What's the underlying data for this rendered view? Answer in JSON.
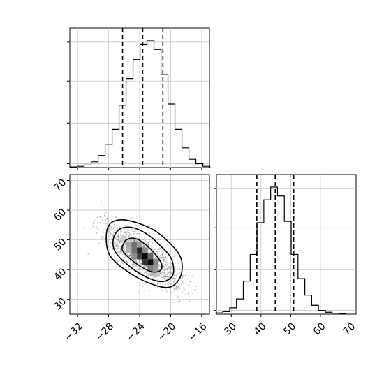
{
  "chart_data": [
    {
      "panel": "marginal-x",
      "type": "histogram",
      "xlim": [
        -33,
        -15
      ],
      "bins": [
        [
          -32.5,
          0.005
        ],
        [
          -31.6,
          0.01
        ],
        [
          -30.7,
          0.02
        ],
        [
          -29.8,
          0.045
        ],
        [
          -28.9,
          0.095
        ],
        [
          -28.0,
          0.18
        ],
        [
          -27.1,
          0.3
        ],
        [
          -26.2,
          0.49
        ],
        [
          -25.3,
          0.7
        ],
        [
          -24.4,
          0.85
        ],
        [
          -23.5,
          0.97
        ],
        [
          -22.6,
          1.0
        ],
        [
          -21.7,
          0.93
        ],
        [
          -20.8,
          0.73
        ],
        [
          -19.9,
          0.5
        ],
        [
          -19.0,
          0.3
        ],
        [
          -18.1,
          0.155
        ],
        [
          -17.2,
          0.065
        ],
        [
          -16.3,
          0.03
        ],
        [
          -15.4,
          0.01
        ]
      ],
      "bin_width": 0.9,
      "quantiles": [
        -26.2,
        -23.6,
        -21.0
      ],
      "yticks": [
        0.03,
        0.35,
        0.68,
        0.99
      ]
    },
    {
      "panel": "joint-2d",
      "type": "heatmap",
      "xlim": [
        -33,
        -15
      ],
      "ylim": [
        25,
        72
      ],
      "xticks": [
        "−32",
        "−28",
        "−24",
        "−20",
        "−16"
      ],
      "xtick_values": [
        -32,
        -28,
        -24,
        -20,
        -16
      ],
      "yticks": [
        "30",
        "40",
        "50",
        "60",
        "70"
      ],
      "ytick_values": [
        30,
        40,
        50,
        60,
        70
      ],
      "center": [
        -23.6,
        44.5
      ],
      "cells": [
        [
          -24.7,
          46.5,
          0.55
        ],
        [
          -24.0,
          46.5,
          0.85
        ],
        [
          -23.3,
          46.5,
          0.45
        ],
        [
          -25.4,
          48.5,
          0.35
        ],
        [
          -24.7,
          48.5,
          0.55
        ],
        [
          -24.0,
          48.5,
          0.4
        ],
        [
          -24.0,
          44.5,
          0.75
        ],
        [
          -23.3,
          44.5,
          1.0
        ],
        [
          -22.6,
          44.5,
          0.6
        ],
        [
          -23.3,
          42.5,
          0.8
        ],
        [
          -22.6,
          42.5,
          0.95
        ],
        [
          -21.9,
          42.5,
          0.45
        ],
        [
          -22.6,
          40.5,
          0.5
        ],
        [
          -21.9,
          40.5,
          0.4
        ],
        [
          -25.4,
          46.5,
          0.3
        ],
        [
          -24.7,
          44.5,
          0.45
        ],
        [
          -21.9,
          38.5,
          0.25
        ],
        [
          -26.1,
          50.5,
          0.2
        ]
      ],
      "contours": [
        {
          "level": "inner",
          "points": [
            [
              -26.1,
              48.6
            ],
            [
              -25.6,
              50.2
            ],
            [
              -24.6,
              50.5
            ],
            [
              -23.4,
              48.8
            ],
            [
              -22.1,
              45.5
            ],
            [
              -21.2,
              42.1
            ],
            [
              -21.3,
              39.8
            ],
            [
              -22.3,
              39.2
            ],
            [
              -23.6,
              40.6
            ],
            [
              -25.2,
              43.6
            ],
            [
              -26.2,
              46.4
            ]
          ]
        },
        {
          "level": "middle",
          "points": [
            [
              -27.4,
              50.2
            ],
            [
              -26.6,
              53.6
            ],
            [
              -25.0,
              54.2
            ],
            [
              -23.1,
              52.0
            ],
            [
              -21.3,
              48.0
            ],
            [
              -19.9,
              43.6
            ],
            [
              -19.7,
              38.3
            ],
            [
              -21.0,
              36.0
            ],
            [
              -22.9,
              37.2
            ],
            [
              -25.1,
              40.7
            ],
            [
              -27.1,
              45.8
            ]
          ]
        },
        {
          "level": "outer",
          "points": [
            [
              -28.3,
              51.6
            ],
            [
              -27.6,
              55.9
            ],
            [
              -25.6,
              56.6
            ],
            [
              -22.5,
              53.8
            ],
            [
              -20.3,
              49.4
            ],
            [
              -18.7,
              44.0
            ],
            [
              -18.7,
              37.9
            ],
            [
              -20.1,
              34.1
            ],
            [
              -22.5,
              35.2
            ],
            [
              -25.3,
              38.9
            ],
            [
              -27.8,
              44.6
            ]
          ]
        }
      ]
    },
    {
      "panel": "marginal-y",
      "type": "histogram",
      "xlim": [
        25,
        72
      ],
      "xticks": [
        "30",
        "40",
        "50",
        "60",
        "70"
      ],
      "xtick_values": [
        30,
        40,
        50,
        60,
        70
      ],
      "bins": [
        [
          26.0,
          0.01
        ],
        [
          28.3,
          0.02
        ],
        [
          30.6,
          0.05
        ],
        [
          32.9,
          0.12
        ],
        [
          35.2,
          0.26
        ],
        [
          37.5,
          0.47
        ],
        [
          39.8,
          0.72
        ],
        [
          42.1,
          0.9
        ],
        [
          44.4,
          1.0
        ],
        [
          46.7,
          0.93
        ],
        [
          49.0,
          0.73
        ],
        [
          51.3,
          0.47
        ],
        [
          53.6,
          0.28
        ],
        [
          55.9,
          0.15
        ],
        [
          58.2,
          0.07
        ],
        [
          60.5,
          0.03
        ],
        [
          62.8,
          0.015
        ],
        [
          65.1,
          0.008
        ],
        [
          67.4,
          0.003
        ]
      ],
      "bin_width": 2.3,
      "quantiles": [
        38.6,
        44.8,
        51.0
      ],
      "yticks": [
        0.03,
        0.35,
        0.68,
        0.99
      ]
    }
  ]
}
